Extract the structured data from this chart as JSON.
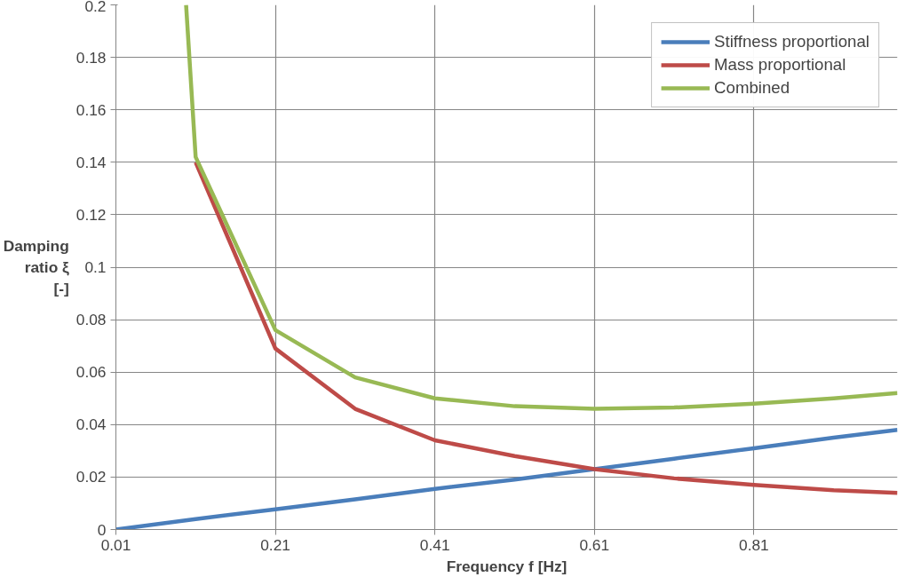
{
  "chart_data": {
    "type": "line",
    "xlabel": "Frequency f [Hz]",
    "ylabel": "Damping ratio ξ [-]",
    "xlim": [
      0.01,
      0.99
    ],
    "ylim": [
      0,
      0.2
    ],
    "xticks": [
      0.01,
      0.21,
      0.41,
      0.61,
      0.81
    ],
    "yticks": [
      0,
      0.02,
      0.04,
      0.06,
      0.08,
      0.1,
      0.12,
      0.14,
      0.16,
      0.18,
      0.2
    ],
    "grid": true,
    "legend": "top right",
    "marker": "none",
    "line_style": "solid",
    "series": [
      {
        "name": "Stiffness proportional",
        "color": "#4a7ebb",
        "x": [
          0.01,
          0.11,
          0.21,
          0.31,
          0.41,
          0.51,
          0.61,
          0.71,
          0.81,
          0.91,
          0.99
        ],
        "values": [
          0,
          0.004,
          0.0077,
          0.0115,
          0.0155,
          0.019,
          0.023,
          0.027,
          0.031,
          0.035,
          0.038
        ]
      },
      {
        "name": "Mass proportional",
        "color": "#be4b48",
        "x": [
          0.11,
          0.21,
          0.31,
          0.41,
          0.51,
          0.61,
          0.71,
          0.81,
          0.91,
          0.99
        ],
        "values": [
          0.14,
          0.069,
          0.046,
          0.034,
          0.028,
          0.023,
          0.0195,
          0.017,
          0.015,
          0.014
        ]
      },
      {
        "name": "Combined",
        "color": "#98b954",
        "x": [
          0.098,
          0.11,
          0.21,
          0.31,
          0.41,
          0.51,
          0.61,
          0.71,
          0.81,
          0.91,
          0.99
        ],
        "values": [
          0.2,
          0.142,
          0.076,
          0.058,
          0.05,
          0.047,
          0.046,
          0.0465,
          0.048,
          0.05,
          0.052
        ]
      }
    ]
  }
}
